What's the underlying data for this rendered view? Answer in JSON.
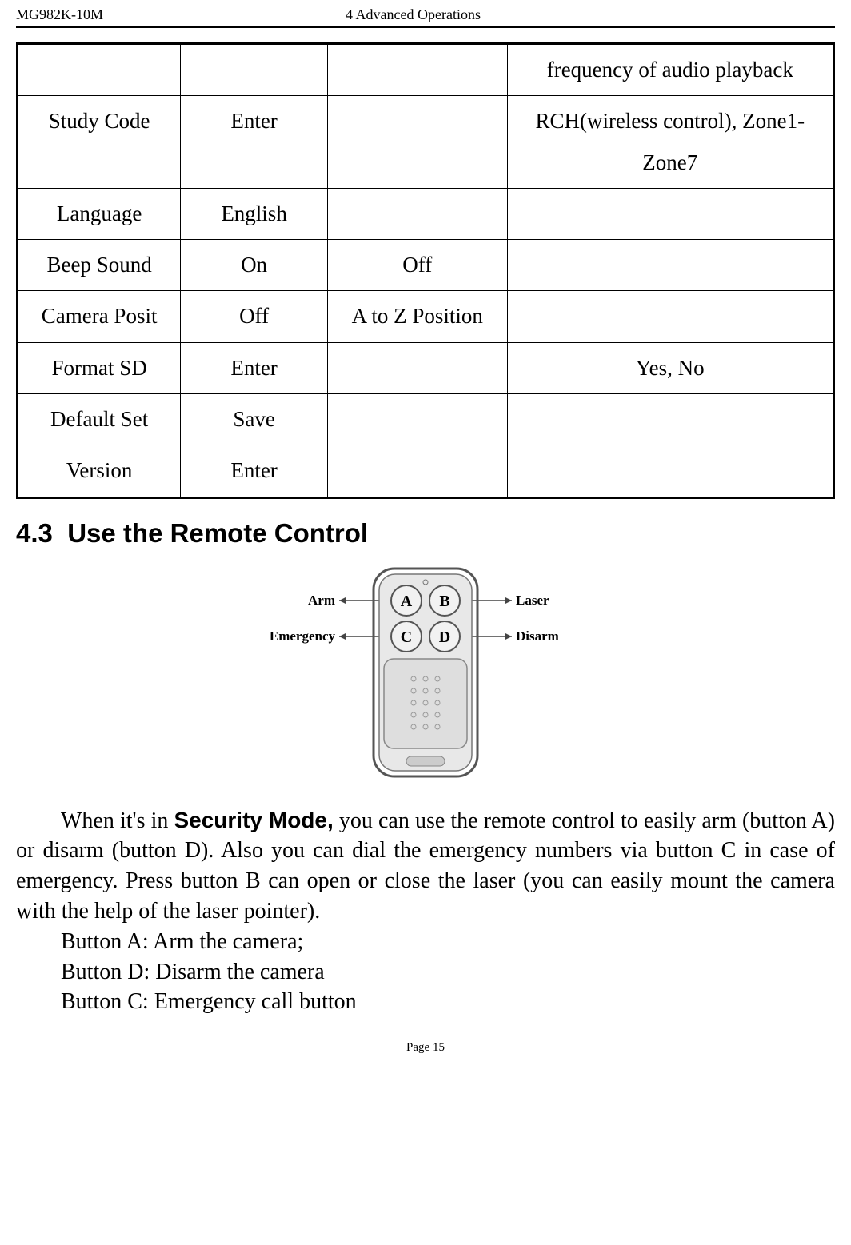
{
  "header": {
    "model": "MG982K-10M",
    "chapter": "4 Advanced Operations"
  },
  "table": {
    "rows": [
      {
        "c1": "",
        "c2": "",
        "c3": "",
        "c4": "frequency of audio playback"
      },
      {
        "c1": "Study Code",
        "c2": "Enter",
        "c3": "",
        "c4": "RCH(wireless control), Zone1-Zone7"
      },
      {
        "c1": "Language",
        "c2": "English",
        "c3": "",
        "c4": ""
      },
      {
        "c1": "Beep Sound",
        "c2": "On",
        "c3": "Off",
        "c4": ""
      },
      {
        "c1": "Camera Posit",
        "c2": "Off",
        "c3": "A to Z Position",
        "c4": ""
      },
      {
        "c1": "Format SD",
        "c2": "Enter",
        "c3": "",
        "c4": "Yes, No"
      },
      {
        "c1": "Default Set",
        "c2": "Save",
        "c3": "",
        "c4": ""
      },
      {
        "c1": "Version",
        "c2": "Enter",
        "c3": "",
        "c4": ""
      }
    ],
    "border_color": "#000000",
    "cell_fontsize": 27
  },
  "section": {
    "number": "4.3",
    "title": "Use the Remote Control"
  },
  "remote": {
    "labels": {
      "arm": "Arm",
      "laser": "Laser",
      "emergency": "Emergency",
      "disarm": "Disarm",
      "a": "A",
      "b": "B",
      "c": "C",
      "d": "D"
    },
    "colors": {
      "body": "#d9d9d9",
      "body_outline": "#666666",
      "button_fill": "#ececec",
      "button_stroke": "#555555",
      "label_text": "#000000",
      "arrow": "#444444",
      "dot": "#888888"
    }
  },
  "paragraph": {
    "lead": "When it's in ",
    "bold": "Security Mode,",
    "rest": " you can use the remote control to easily arm (button A) or disarm (button D). Also you can dial the emergency numbers via button C in case of emergency. Press button B can open or close the laser (you can easily mount the camera with the help of the laser pointer)."
  },
  "buttons_list": {
    "a": "Button A: Arm the camera;",
    "d": "Button D: Disarm the camera",
    "c": "Button C: Emergency call button"
  },
  "footer": {
    "page": "Page 15"
  }
}
